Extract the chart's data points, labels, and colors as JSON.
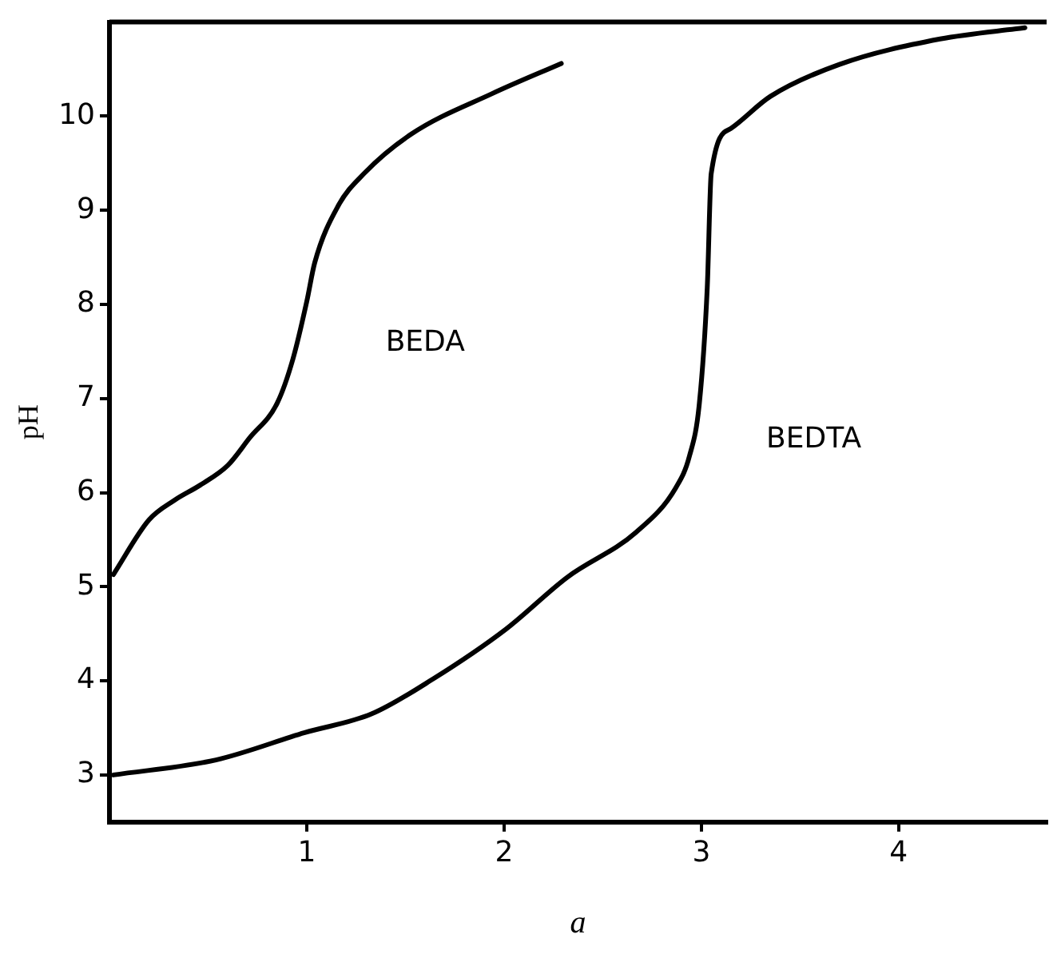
{
  "chart_data": {
    "type": "line",
    "xlabel": "a",
    "ylabel": "pH",
    "xlim": [
      0,
      4.75
    ],
    "ylim": [
      2.5,
      11
    ],
    "xticks": [
      1,
      2,
      3,
      4
    ],
    "yticks": [
      3,
      4,
      5,
      6,
      7,
      8,
      9,
      10
    ],
    "grid": false,
    "legend": false,
    "marker": "none",
    "line_style": "solid",
    "series": [
      {
        "name": "BEDA",
        "color": "#000000",
        "x": [
          0.02,
          0.2,
          0.33,
          0.46,
          0.6,
          0.71,
          0.85,
          0.93,
          1.0,
          1.04,
          1.16,
          1.29,
          1.53,
          1.94,
          2.29
        ],
        "values": [
          5.13,
          5.71,
          5.92,
          6.08,
          6.29,
          6.58,
          6.95,
          7.42,
          8.03,
          8.44,
          9.05,
          9.39,
          9.81,
          10.24,
          10.56
        ]
      },
      {
        "name": "BEDTA",
        "color": "#000000",
        "x": [
          0.02,
          0.54,
          0.99,
          1.33,
          1.64,
          2.01,
          2.32,
          2.67,
          2.87,
          2.94,
          2.99,
          3.03,
          3.05,
          3.15,
          3.35,
          3.7,
          4.21,
          4.64
        ],
        "values": [
          3.0,
          3.16,
          3.45,
          3.65,
          4.02,
          4.55,
          5.1,
          5.58,
          6.05,
          6.39,
          6.95,
          8.18,
          9.39,
          9.87,
          10.21,
          10.55,
          10.82,
          10.94
        ]
      }
    ]
  }
}
